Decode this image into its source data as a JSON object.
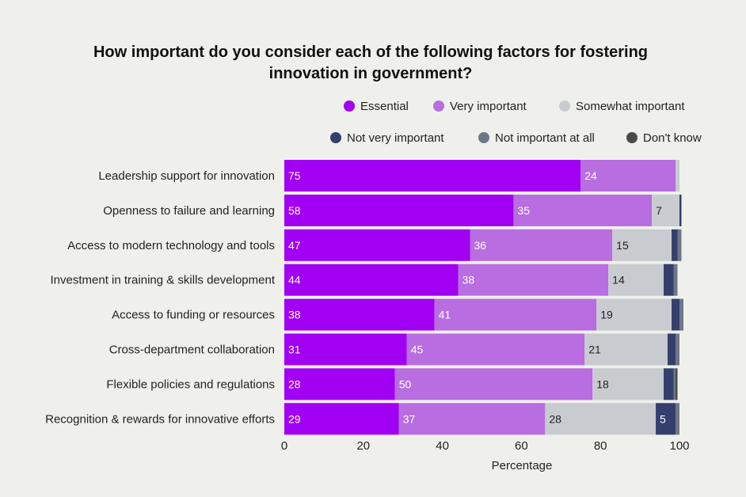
{
  "chart_data": {
    "type": "bar",
    "orientation": "horizontal",
    "stacked": true,
    "title": "How important do you consider each of the following factors for fostering innovation in government?",
    "xlabel": "Percentage",
    "ylabel": "",
    "xlim": [
      0,
      100
    ],
    "xticks": [
      "0",
      "20",
      "40",
      "60",
      "80",
      "100"
    ],
    "grid": false,
    "legend_position": "top-right",
    "categories": [
      "Leadership support for innovation",
      "Openness to failure and learning",
      "Access to modern technology and tools",
      "Investment in training & skills development",
      "Access to funding or resources",
      "Cross-department collaboration",
      "Flexible policies and regulations",
      "Recognition & rewards for innovative efforts"
    ],
    "series": [
      {
        "name": "Essential",
        "color": "#a100f2",
        "label_color": "#ffffff",
        "values": [
          75,
          58,
          47,
          44,
          38,
          31,
          28,
          29
        ]
      },
      {
        "name": "Very important",
        "color": "#b86de0",
        "label_color": "#ffffff",
        "values": [
          24,
          35,
          36,
          38,
          41,
          45,
          50,
          37
        ]
      },
      {
        "name": "Somewhat important",
        "color": "#c8cbcf",
        "label_color": "#222222",
        "values": [
          1,
          7,
          15,
          14,
          19,
          21,
          18,
          28
        ]
      },
      {
        "name": "Not very important",
        "color": "#343f6e",
        "label_color": "#ffffff",
        "values": [
          0,
          0.5,
          1.5,
          2.5,
          2,
          2,
          2.5,
          5
        ]
      },
      {
        "name": "Not important at all",
        "color": "#6f7787",
        "label_color": "#ffffff",
        "values": [
          0,
          0,
          1,
          1,
          1,
          1,
          0.5,
          1
        ]
      },
      {
        "name": "Don't know",
        "color": "#4a4a4a",
        "label_color": "#ffffff",
        "values": [
          0,
          0,
          0,
          0,
          0,
          0,
          0.5,
          0
        ]
      }
    ],
    "data_labels": [
      [
        "75",
        "24",
        "",
        "",
        "",
        ""
      ],
      [
        "58",
        "35",
        "7",
        "",
        "",
        ""
      ],
      [
        "47",
        "36",
        "15",
        "",
        "",
        ""
      ],
      [
        "44",
        "38",
        "14",
        "",
        "",
        ""
      ],
      [
        "38",
        "41",
        "19",
        "",
        "",
        ""
      ],
      [
        "31",
        "45",
        "21",
        "",
        "",
        ""
      ],
      [
        "28",
        "50",
        "18",
        "",
        "",
        ""
      ],
      [
        "29",
        "37",
        "28",
        "5",
        "",
        ""
      ]
    ]
  }
}
